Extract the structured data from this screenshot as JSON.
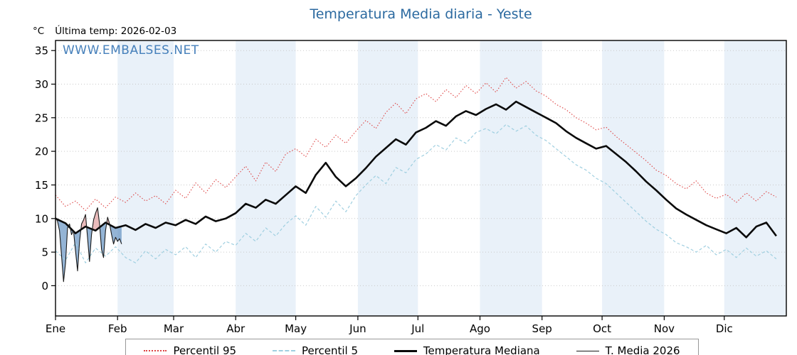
{
  "title": "Temperatura Media diaria - Yeste",
  "watermark": "WWW.EMBALSES.NET",
  "unit_label": "°C",
  "last_temp_label": "Última temp: 2026-02-03",
  "colors": {
    "title": "#2c6aa0",
    "watermark": "#3d7ab8",
    "band": "#e9f1f9",
    "grid": "#c9c9c9",
    "axis": "#000000",
    "p95": "#dd4444",
    "p5": "#9fcfe0",
    "median": "#0a0a0a",
    "t2026": "#1a1a1a",
    "fill_below_median": "#5a8cbf",
    "fill_above_median": "#dd8f8f"
  },
  "chart_data": {
    "type": "line",
    "title": "Temperatura Media diaria - Yeste",
    "xlabel": "",
    "ylabel": "°C",
    "ylim": [
      -4.5,
      36.5
    ],
    "yticks": [
      0,
      5,
      10,
      15,
      20,
      25,
      30,
      35
    ],
    "x_unit": "day_of_year",
    "x_range_days": [
      0,
      365
    ],
    "grid": "horizontal-dotted",
    "legend_position": "bottom",
    "month_labels": [
      "Ene",
      "Feb",
      "Mar",
      "Abr",
      "May",
      "Jun",
      "Jul",
      "Ago",
      "Sep",
      "Oct",
      "Nov",
      "Dic"
    ],
    "month_start_days": [
      0,
      31,
      59,
      90,
      120,
      151,
      181,
      212,
      243,
      273,
      304,
      334
    ],
    "series": [
      {
        "key": "p95",
        "name": "Percentil 95",
        "days_step": 5,
        "values": [
          13.5,
          11.8,
          12.6,
          11.2,
          12.9,
          11.6,
          13.2,
          12.4,
          13.8,
          12.6,
          13.4,
          12.2,
          14.2,
          13.0,
          15.3,
          13.8,
          15.8,
          14.6,
          16.2,
          17.8,
          15.6,
          18.4,
          17.0,
          19.6,
          20.4,
          19.2,
          21.8,
          20.6,
          22.4,
          21.2,
          23.0,
          24.6,
          23.4,
          25.8,
          27.2,
          25.6,
          27.8,
          28.6,
          27.4,
          29.2,
          28.0,
          29.8,
          28.6,
          30.2,
          28.8,
          31.0,
          29.4,
          30.4,
          29.0,
          28.2,
          27.0,
          26.2,
          25.0,
          24.2,
          23.2,
          23.6,
          22.2,
          21.0,
          19.8,
          18.6,
          17.2,
          16.4,
          15.2,
          14.4,
          15.6,
          13.8,
          13.0,
          13.6,
          12.4,
          13.8,
          12.6,
          14.0,
          13.2
        ]
      },
      {
        "key": "p5",
        "name": "Percentil 5",
        "days_step": 5,
        "values": [
          5.2,
          3.8,
          6.4,
          3.4,
          5.6,
          4.4,
          5.8,
          4.2,
          3.4,
          5.2,
          4.0,
          5.4,
          4.6,
          5.8,
          4.2,
          6.2,
          5.0,
          6.6,
          6.0,
          7.8,
          6.6,
          8.6,
          7.4,
          9.2,
          10.4,
          9.0,
          11.8,
          10.2,
          12.6,
          11.0,
          13.4,
          15.0,
          16.4,
          15.2,
          17.6,
          16.8,
          18.8,
          19.6,
          21.0,
          20.2,
          22.0,
          21.2,
          22.8,
          23.4,
          22.6,
          24.0,
          23.0,
          23.8,
          22.4,
          21.6,
          20.4,
          19.2,
          18.0,
          17.2,
          16.0,
          15.2,
          13.8,
          12.4,
          11.0,
          9.6,
          8.4,
          7.6,
          6.4,
          5.8,
          5.0,
          6.0,
          4.6,
          5.4,
          4.2,
          5.6,
          4.4,
          5.2,
          4.0
        ]
      },
      {
        "key": "median",
        "name": "Temperatura Mediana",
        "days_step": 5,
        "values": [
          10.0,
          9.3,
          7.8,
          8.8,
          8.2,
          9.4,
          8.6,
          9.0,
          8.3,
          9.2,
          8.6,
          9.4,
          9.0,
          9.8,
          9.2,
          10.3,
          9.6,
          10.0,
          10.8,
          12.2,
          11.6,
          12.8,
          12.2,
          13.5,
          14.8,
          13.8,
          16.5,
          18.3,
          16.2,
          14.8,
          16.0,
          17.5,
          19.2,
          20.5,
          21.8,
          21.0,
          22.8,
          23.5,
          24.5,
          23.8,
          25.2,
          26.0,
          25.4,
          26.3,
          27.0,
          26.2,
          27.4,
          26.6,
          25.8,
          25.0,
          24.2,
          23.0,
          22.0,
          21.2,
          20.4,
          20.8,
          19.6,
          18.4,
          17.0,
          15.5,
          14.2,
          12.8,
          11.5,
          10.6,
          9.8,
          9.0,
          8.4,
          7.8,
          8.6,
          7.2,
          8.8,
          9.4,
          7.4
        ]
      },
      {
        "key": "t2026",
        "name": "T. Media 2026",
        "days_step": 1,
        "values": [
          10.2,
          9.6,
          8.2,
          4.6,
          0.6,
          3.4,
          8.6,
          9.2,
          7.6,
          8.2,
          5.2,
          2.2,
          6.6,
          9.2,
          9.8,
          10.6,
          7.2,
          3.6,
          7.6,
          9.8,
          10.8,
          11.6,
          9.2,
          5.4,
          4.2,
          8.2,
          10.2,
          9.2,
          7.6,
          6.2,
          7.2,
          6.6,
          7.0,
          6.2
        ]
      }
    ],
    "legend": [
      {
        "key": "p95",
        "label": "Percentil 95",
        "dash": "dotted",
        "color": "#dd4444",
        "weight": 2
      },
      {
        "key": "p5",
        "label": "Percentil 5",
        "dash": "dashed",
        "color": "#9fcfe0",
        "weight": 2
      },
      {
        "key": "median",
        "label": "Temperatura Mediana",
        "dash": "solid",
        "color": "#0a0a0a",
        "weight": 3
      },
      {
        "key": "t2026",
        "label": "T. Media 2026",
        "dash": "solid",
        "color": "#1a1a1a",
        "weight": 1
      }
    ]
  }
}
